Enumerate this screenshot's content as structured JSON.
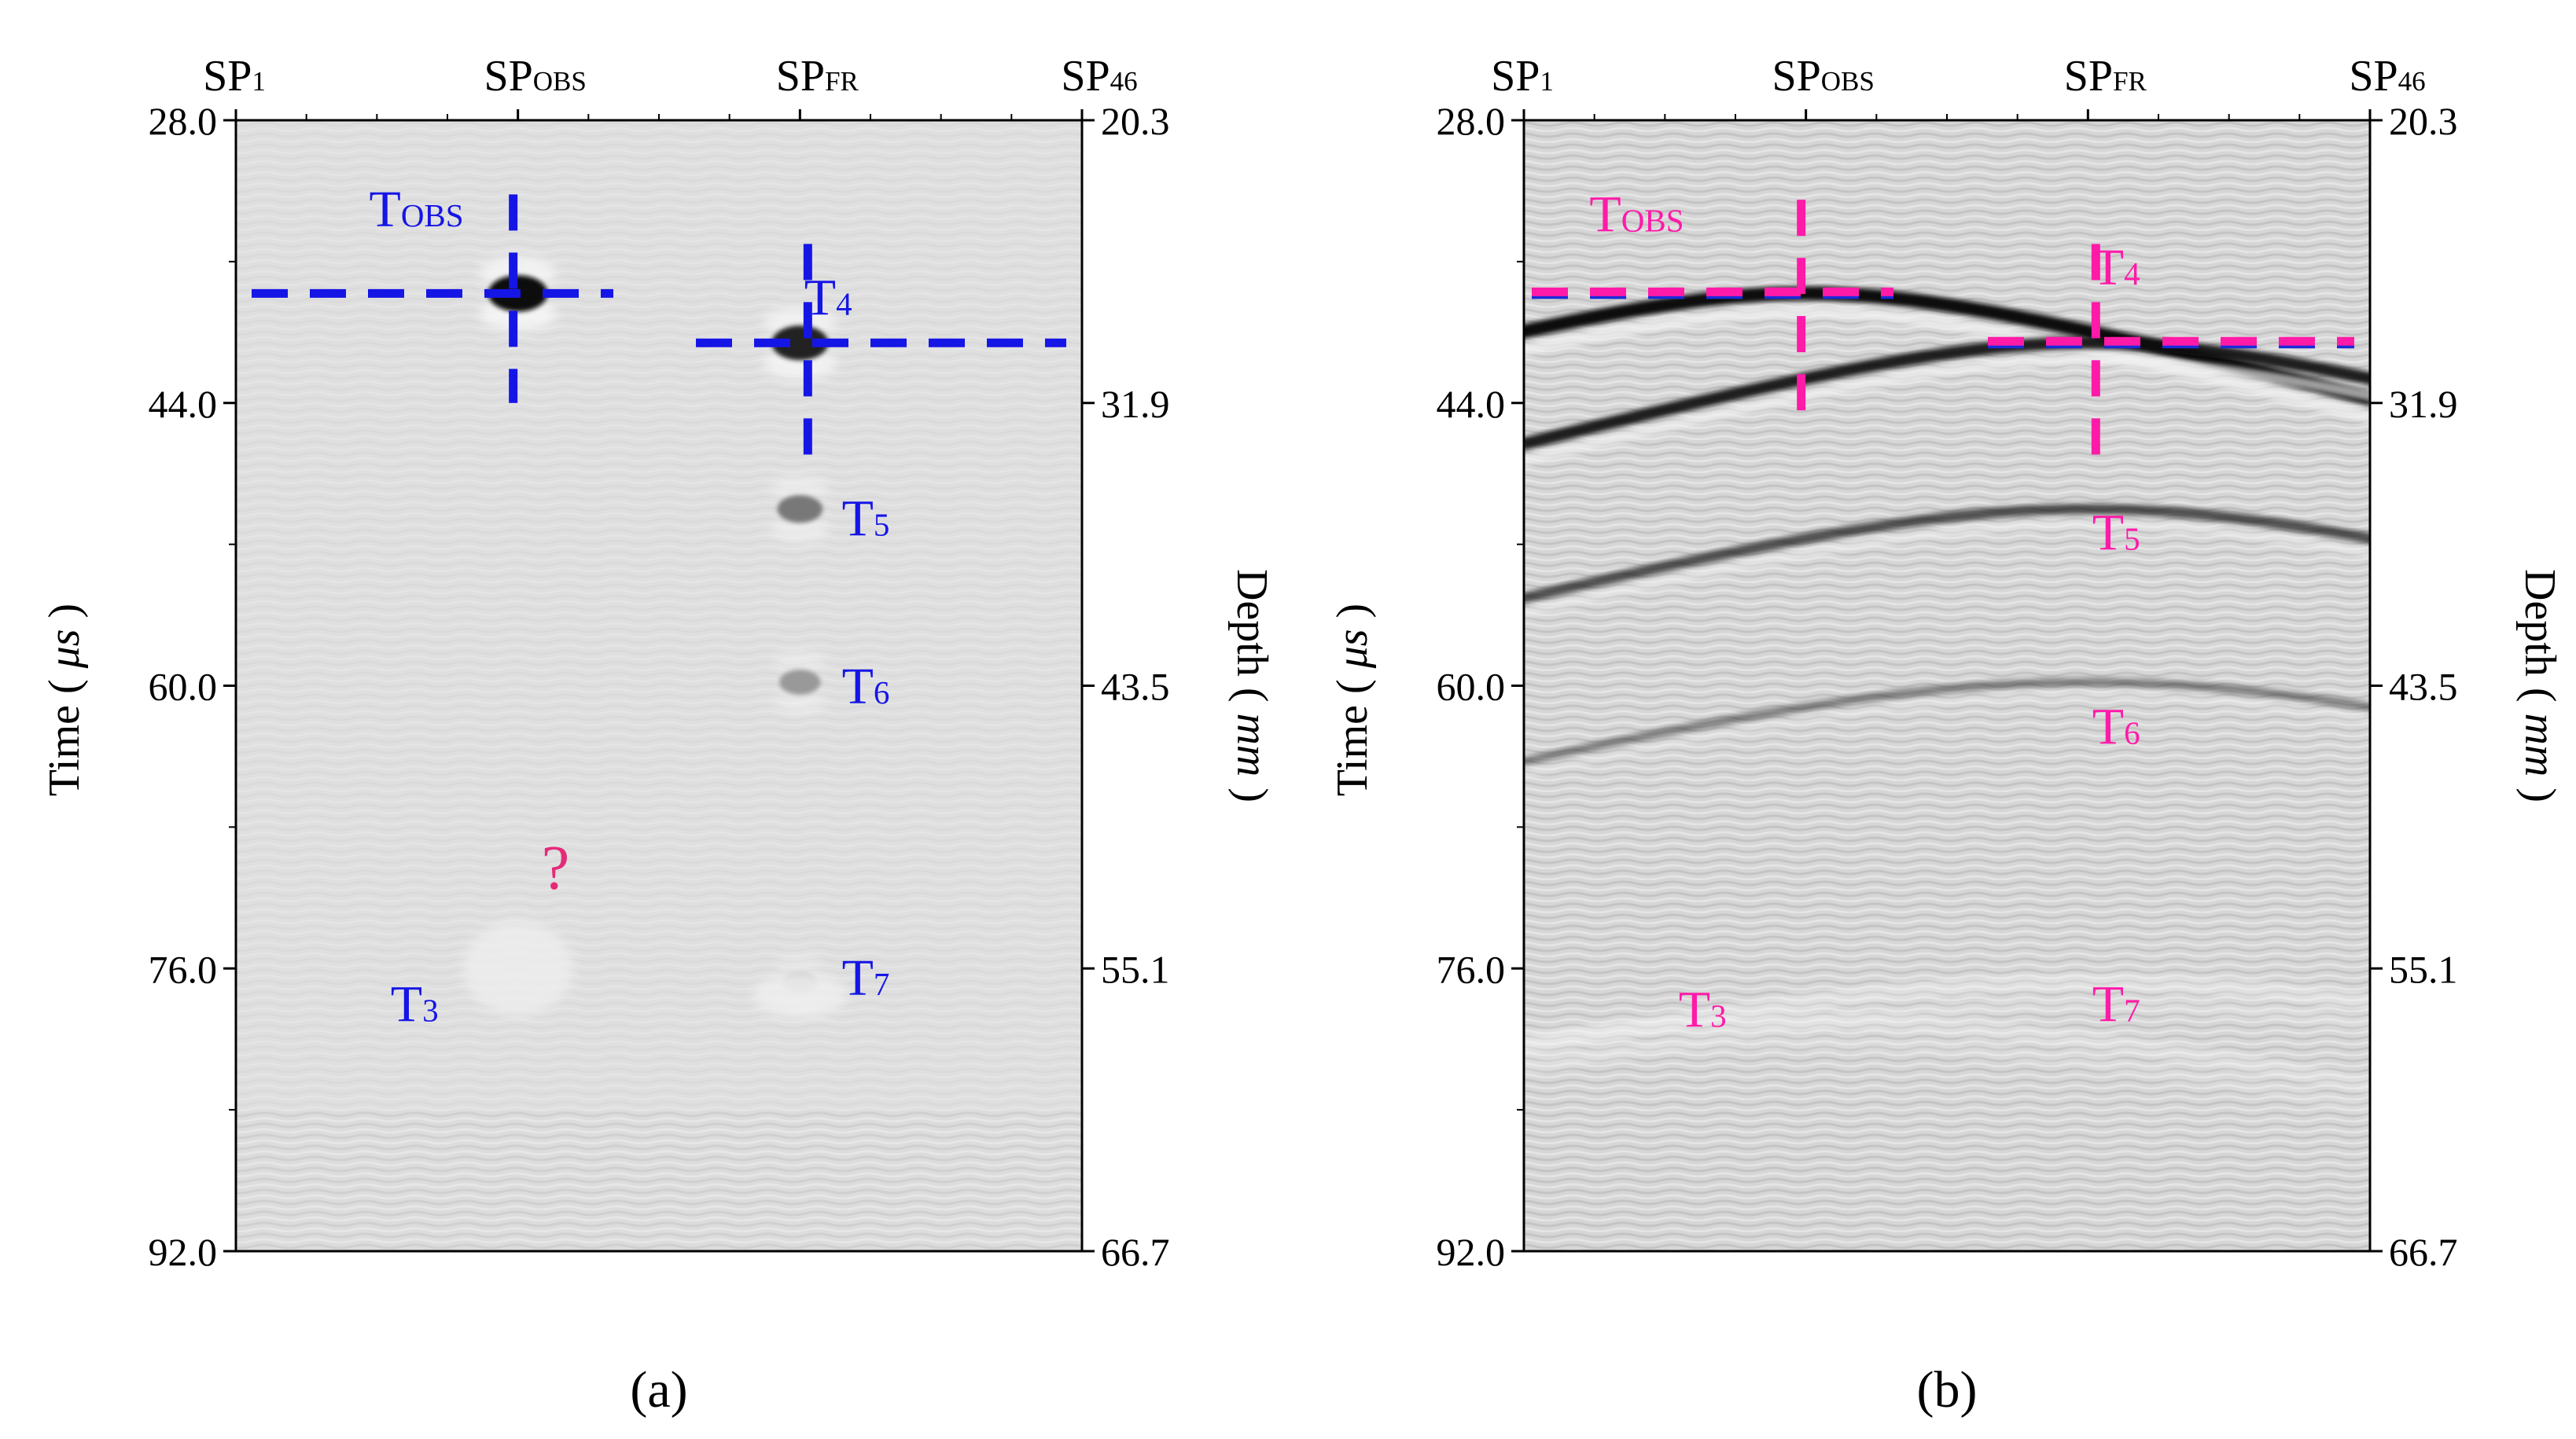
{
  "chart_data": [
    {
      "type": "heatmap",
      "panel_label": "(a)",
      "variant": "focused",
      "x_ticks": [
        {
          "main": "SP",
          "sub": "1",
          "index": 1
        },
        {
          "main": "SP",
          "sub": "OBS",
          "index": 16
        },
        {
          "main": "SP",
          "sub": "FR",
          "index": 31
        },
        {
          "main": "SP",
          "sub": "46",
          "index": 46
        }
      ],
      "x_range": [
        1,
        46
      ],
      "ylabel_left": "Time (μs)",
      "ylabel_left_parts": {
        "pre": "Time ( ",
        "unit": "μs",
        "post": " )"
      },
      "ylim_left": [
        28.0,
        92.0
      ],
      "yticks_left": [
        "28.0",
        "44.0",
        "60.0",
        "76.0",
        "92.0"
      ],
      "ylabel_right": "Depth (mm)",
      "ylabel_right_parts": {
        "pre": "Depth ( ",
        "unit": "mm",
        "post": " )"
      },
      "ylim_right": [
        20.3,
        66.7
      ],
      "yticks_right": [
        "20.3",
        "31.9",
        "43.5",
        "55.1",
        "66.7"
      ],
      "marker_color": "#1515e6",
      "annotation_color": "#e52a78",
      "crosshairs": [
        {
          "name": "TOBS",
          "x": 16,
          "time": 37.8
        },
        {
          "name": "T4",
          "x": 31,
          "time": 40.6
        }
      ],
      "labels": [
        {
          "main": "T",
          "sub": "OBS",
          "x": 10.6,
          "time": 34.0,
          "color": "marker"
        },
        {
          "main": "T",
          "sub": "4",
          "x": 32.5,
          "time": 39.0,
          "color": "marker"
        },
        {
          "main": "T",
          "sub": "5",
          "x": 34.5,
          "time": 51.5,
          "color": "marker"
        },
        {
          "main": "T",
          "sub": "6",
          "x": 34.5,
          "time": 61.0,
          "color": "marker"
        },
        {
          "main": "T",
          "sub": "7",
          "x": 34.5,
          "time": 77.5,
          "color": "marker"
        },
        {
          "main": "T",
          "sub": "3",
          "x": 10.5,
          "time": 79.0,
          "color": "marker"
        },
        {
          "main": "?",
          "sub": "",
          "x": 18.0,
          "time": 71.5,
          "color": "annotation"
        }
      ],
      "reflectors": [
        {
          "x": 16,
          "time": 37.8,
          "strength": 1.0
        },
        {
          "x": 31,
          "time": 40.6,
          "strength": 0.9
        },
        {
          "x": 31,
          "time": 50.0,
          "strength": 0.5
        },
        {
          "x": 31,
          "time": 59.8,
          "strength": 0.35
        },
        {
          "x": 31,
          "time": 76.8,
          "strength": 0.15
        }
      ]
    },
    {
      "type": "heatmap",
      "panel_label": "(b)",
      "variant": "raw",
      "x_ticks": [
        {
          "main": "SP",
          "sub": "1",
          "index": 1
        },
        {
          "main": "SP",
          "sub": "OBS",
          "index": 16
        },
        {
          "main": "SP",
          "sub": "FR",
          "index": 31
        },
        {
          "main": "SP",
          "sub": "46",
          "index": 46
        }
      ],
      "x_range": [
        1,
        46
      ],
      "ylabel_left": "Time (μs)",
      "ylabel_left_parts": {
        "pre": "Time ( ",
        "unit": "μs",
        "post": " )"
      },
      "ylim_left": [
        28.0,
        92.0
      ],
      "yticks_left": [
        "28.0",
        "44.0",
        "60.0",
        "76.0",
        "92.0"
      ],
      "ylabel_right": "Depth (mm)",
      "ylabel_right_parts": {
        "pre": "Depth ( ",
        "unit": "mm",
        "post": " )"
      },
      "ylim_right": [
        20.3,
        66.7
      ],
      "yticks_right": [
        "20.3",
        "31.9",
        "43.5",
        "55.1",
        "66.7"
      ],
      "marker_color": "#ff1aa8",
      "annotation_color": "#ff1aa8",
      "crosshairs": [
        {
          "name": "TOBS",
          "x": 16,
          "time": 37.8
        },
        {
          "name": "T4",
          "x": 31,
          "time": 40.6
        }
      ],
      "labels": [
        {
          "main": "T",
          "sub": "OBS",
          "x": 7.0,
          "time": 34.3,
          "color": "marker"
        },
        {
          "main": "T",
          "sub": "4",
          "x": 32.5,
          "time": 37.3,
          "color": "marker"
        },
        {
          "main": "T",
          "sub": "5",
          "x": 32.5,
          "time": 52.3,
          "color": "marker"
        },
        {
          "main": "T",
          "sub": "6",
          "x": 32.5,
          "time": 63.3,
          "color": "marker"
        },
        {
          "main": "T",
          "sub": "7",
          "x": 32.5,
          "time": 79.0,
          "color": "marker"
        },
        {
          "main": "T",
          "sub": "3",
          "x": 10.5,
          "time": 79.3,
          "color": "marker"
        }
      ],
      "hyperbolas": [
        {
          "x": 16,
          "time": 37.8,
          "strength": 1.0
        },
        {
          "x": 31,
          "time": 40.6,
          "strength": 0.8
        },
        {
          "x": 31,
          "time": 50.0,
          "strength": 0.55
        },
        {
          "x": 31,
          "time": 59.8,
          "strength": 0.3
        },
        {
          "x": 31,
          "time": 76.8,
          "strength": -0.15
        },
        {
          "x": 16,
          "time": 79.0,
          "strength": -0.1
        }
      ]
    }
  ]
}
